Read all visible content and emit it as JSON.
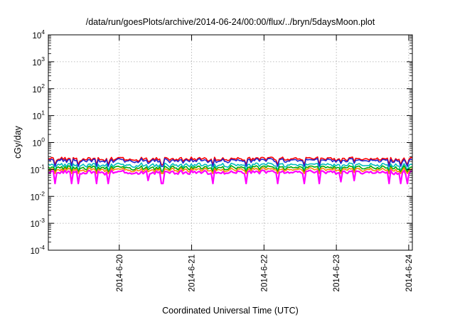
{
  "chart_data": {
    "type": "line",
    "title": "/data/run/goesPlots/archive/2014-06-24/00:00/flux/../bryn/5daysMoon.plot",
    "xlabel": "Coordinated Universal Time (UTC)",
    "ylabel": "cGy/day",
    "yscale": "log",
    "ylim": [
      0.0001,
      10000
    ],
    "x_ticks": [
      "2014-6-20",
      "2014-6-21",
      "2014-6-22",
      "2014-6-23",
      "2014-6-24"
    ],
    "y_ticks": [
      {
        "base": "10",
        "exp": "-4"
      },
      {
        "base": "10",
        "exp": "-3"
      },
      {
        "base": "10",
        "exp": "-2"
      },
      {
        "base": "10",
        "exp": "-1"
      },
      {
        "base": "10",
        "exp": "0"
      },
      {
        "base": "10",
        "exp": "1"
      },
      {
        "base": "10",
        "exp": "2"
      },
      {
        "base": "10",
        "exp": "3"
      },
      {
        "base": "10",
        "exp": "4"
      }
    ],
    "x_range_days": [
      -0.98,
      4.05
    ],
    "grid": true,
    "legend": "none",
    "series": [
      {
        "color": "#ff0000",
        "typical": 0.25,
        "min_dip": 0.15
      },
      {
        "color": "#2222cc",
        "typical": 0.22,
        "min_dip": 0.13
      },
      {
        "color": "#00bbbb",
        "typical": 0.15,
        "min_dip": 0.09
      },
      {
        "color": "#00aa00",
        "typical": 0.12,
        "min_dip": 0.08
      },
      {
        "color": "#ff8800",
        "typical": 0.1,
        "min_dip": 0.07
      },
      {
        "color": "#ff00ff",
        "typical": 0.08,
        "min_dip": 0.03
      }
    ]
  }
}
